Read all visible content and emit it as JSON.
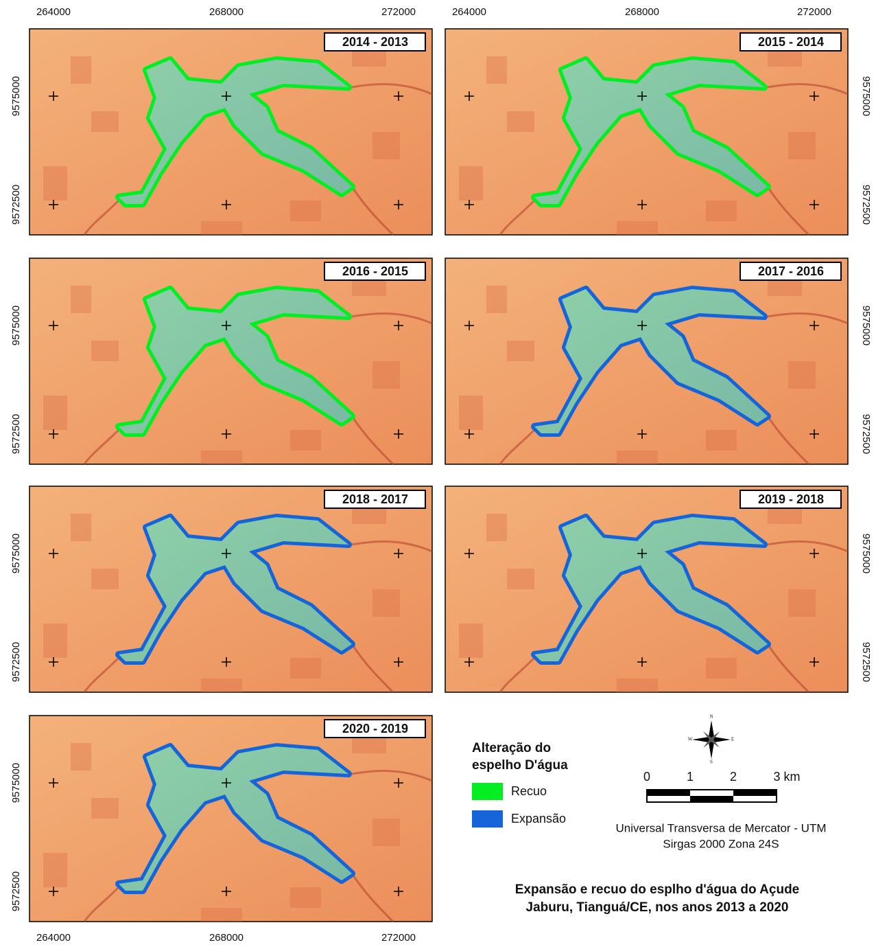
{
  "map": {
    "x_labels": [
      "264000",
      "268000",
      "272000"
    ],
    "y_labels": [
      "9575000",
      "9572500"
    ],
    "panels": [
      {
        "label": "2014 - 2013",
        "color": "#00ee22"
      },
      {
        "label": "2015 - 2014",
        "color": "#00ee22"
      },
      {
        "label": "2016 - 2015",
        "color": "#00ee22"
      },
      {
        "label": "2017 - 2016",
        "color": "#1565d8"
      },
      {
        "label": "2018 - 2017",
        "color": "#1565d8"
      },
      {
        "label": "2019 - 2018",
        "color": "#1565d8"
      },
      {
        "label": "2020 - 2019",
        "color": "#1565d8"
      }
    ],
    "legend": {
      "title": [
        "Alteração do",
        "espelho D'água"
      ],
      "items": [
        {
          "name": "Recuo",
          "color": "#00ee22"
        },
        {
          "name": "Expansão",
          "color": "#1565d8"
        }
      ]
    },
    "compass": [
      "N",
      "E",
      "S",
      "W"
    ],
    "scale": [
      "0",
      "1",
      "2",
      "3 km"
    ],
    "projection": [
      "Universal Transversa de Mercator - UTM",
      "Sirgas 2000 Zona 24S"
    ],
    "title": [
      "Expansão e recuo do esplho d'água do Açude",
      "Jaburu, Tianguá/CE, nos anos 2013 a 2020"
    ]
  }
}
